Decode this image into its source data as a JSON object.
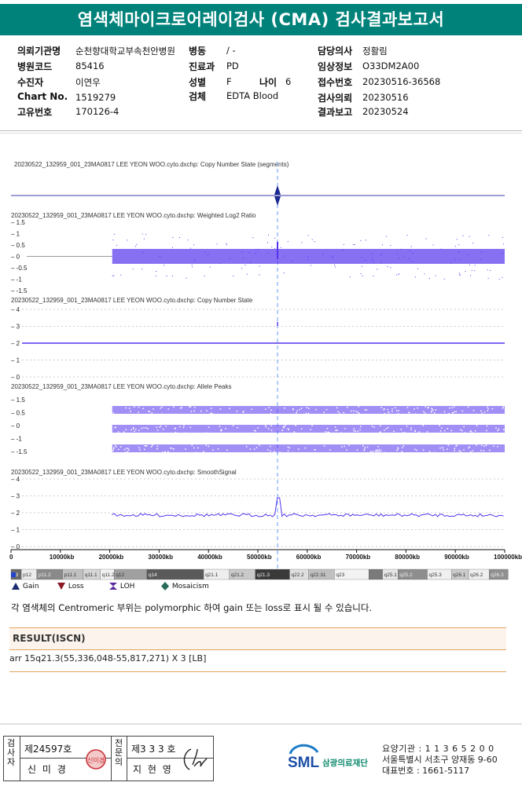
{
  "header": {
    "title": "염색체마이크로어레이검사 (CMA) 검사결과보고서"
  },
  "patient": {
    "institution_label": "의뢰기관명",
    "institution": "순천향대학교부속천안병원",
    "ward_label": "병동",
    "ward": "/ -",
    "doctor_label": "담당의사",
    "doctor": "정활림",
    "hospital_code_label": "병원코드",
    "hospital_code": "85416",
    "department_label": "진료과",
    "department": "PD",
    "clinical_info_label": "임상정보",
    "clinical_info": "O33DM2A00",
    "patient_label": "수진자",
    "patient": "이연우",
    "sex_label": "성별",
    "sex": "F",
    "age_label": "나이",
    "age": "6",
    "receipt_label": "접수번호",
    "receipt": "20230516-36568",
    "chart_label": "Chart No.",
    "chart": "1519279",
    "specimen_label": "검체",
    "specimen": "EDTA Blood",
    "request_label": "검사의뢰",
    "request": "20230516",
    "unique_label": "고유번호",
    "unique": "170126-4",
    "report_label": "결과보고",
    "report": "20230524"
  },
  "plot": {
    "panel1": "20230522_132959_001_23MA0817 LEE YEON WOO.cyto.dxchp: Copy Number State (segments)",
    "panel2": "20230522_132959_001_23MA0817 LEE YEON WOO.cyto.dxchp: Weighted Log2 Ratio",
    "panel3": "20230522_132959_001_23MA0817 LEE YEON WOO.cyto.dxchp: Copy Number State",
    "panel4": "20230522_132959_001_23MA0817 LEE YEON WOO.cyto.dxchp: Allele Peaks",
    "panel5": "20230522_132959_001_23MA0817 LEE YEON WOO.cyto.dxchp: SmoothSignal",
    "log2_ticks": [
      "1.5",
      "1",
      "0.5",
      "0",
      "-0.5",
      "-1",
      "-1.5"
    ],
    "cn_ticks": [
      "4",
      "3",
      "2",
      "1",
      "0"
    ],
    "allele_ticks": [
      "1.5",
      "0.5",
      "0",
      "-1",
      "-1.5"
    ],
    "smooth_ticks": [
      "4",
      "3",
      "2",
      "1",
      "0"
    ],
    "x_ticks": [
      "0",
      "10000kb",
      "20000kb",
      "30000kb",
      "40000kb",
      "50000kb",
      "60000kb",
      "70000kb",
      "80000kb",
      "90000kb",
      "100000kb"
    ],
    "bands": [
      "13",
      "p12",
      "p11.2",
      "p11.1",
      "q11.1",
      "q11.2",
      "q12",
      "q14",
      "q21.1",
      "q21.2",
      "q21.3",
      "q22.2",
      "q22.31",
      "q23",
      "q25.1",
      "q25.2",
      "q25.3",
      "q26.1",
      "q26.2",
      "q26.3"
    ]
  },
  "legend": {
    "gain": "Gain",
    "loss": "Loss",
    "loh": "LOH",
    "mosaicism": "Mosaicism"
  },
  "note": "각 염색체의 Centromeric 부위는 polymorphic 하여 gain 또는 loss로 표시 될 수 있습니다.",
  "result": {
    "title": "RESULT(ISCN)",
    "text": "arr 15q21.3(55,336,048-55,817,271) X 3 [LB]"
  },
  "footer": {
    "examiner_label": "검사자",
    "examiner_no": "제24597호",
    "examiner_name": "신 미 경",
    "specialist_label": "전문의",
    "specialist_no": "제3 3 3 호",
    "specialist_name": "지 현 영",
    "stamp_text": "신미경",
    "org_logo": "SML",
    "org_name": "삼광의료재단",
    "agency_code": "요양기관 : 1 1 3 6 5 2 0 0",
    "address": "서울특별시 서초구 양재동 9-60",
    "phone": "대표번호 : 1661-5117"
  },
  "colors": {
    "header_bg": "#00827b",
    "signal": "#5533ee",
    "cursor": "#6699ff",
    "result_border": "#e6a45c"
  }
}
